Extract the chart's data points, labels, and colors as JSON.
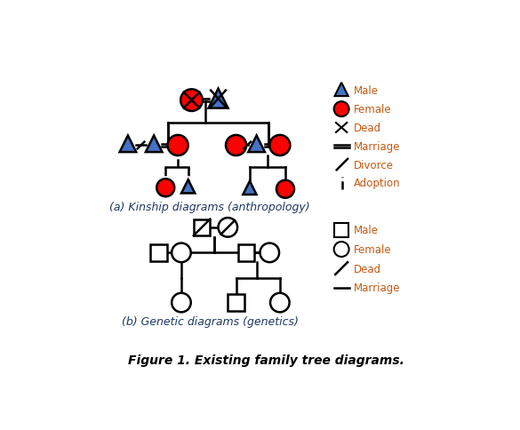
{
  "title": "Figure 1. Existing family tree diagrams.",
  "title_fontsize": 10,
  "subtitle_a": "(a) Kinship diagrams (anthropology)",
  "subtitle_b": "(b) Genetic diagrams (genetics)",
  "subtitle_fontsize": 9,
  "blue": "#4472C4",
  "red": "#FF0000",
  "black": "#000000",
  "text_color": "#1F3864",
  "legend_text_color": "#C55A11"
}
